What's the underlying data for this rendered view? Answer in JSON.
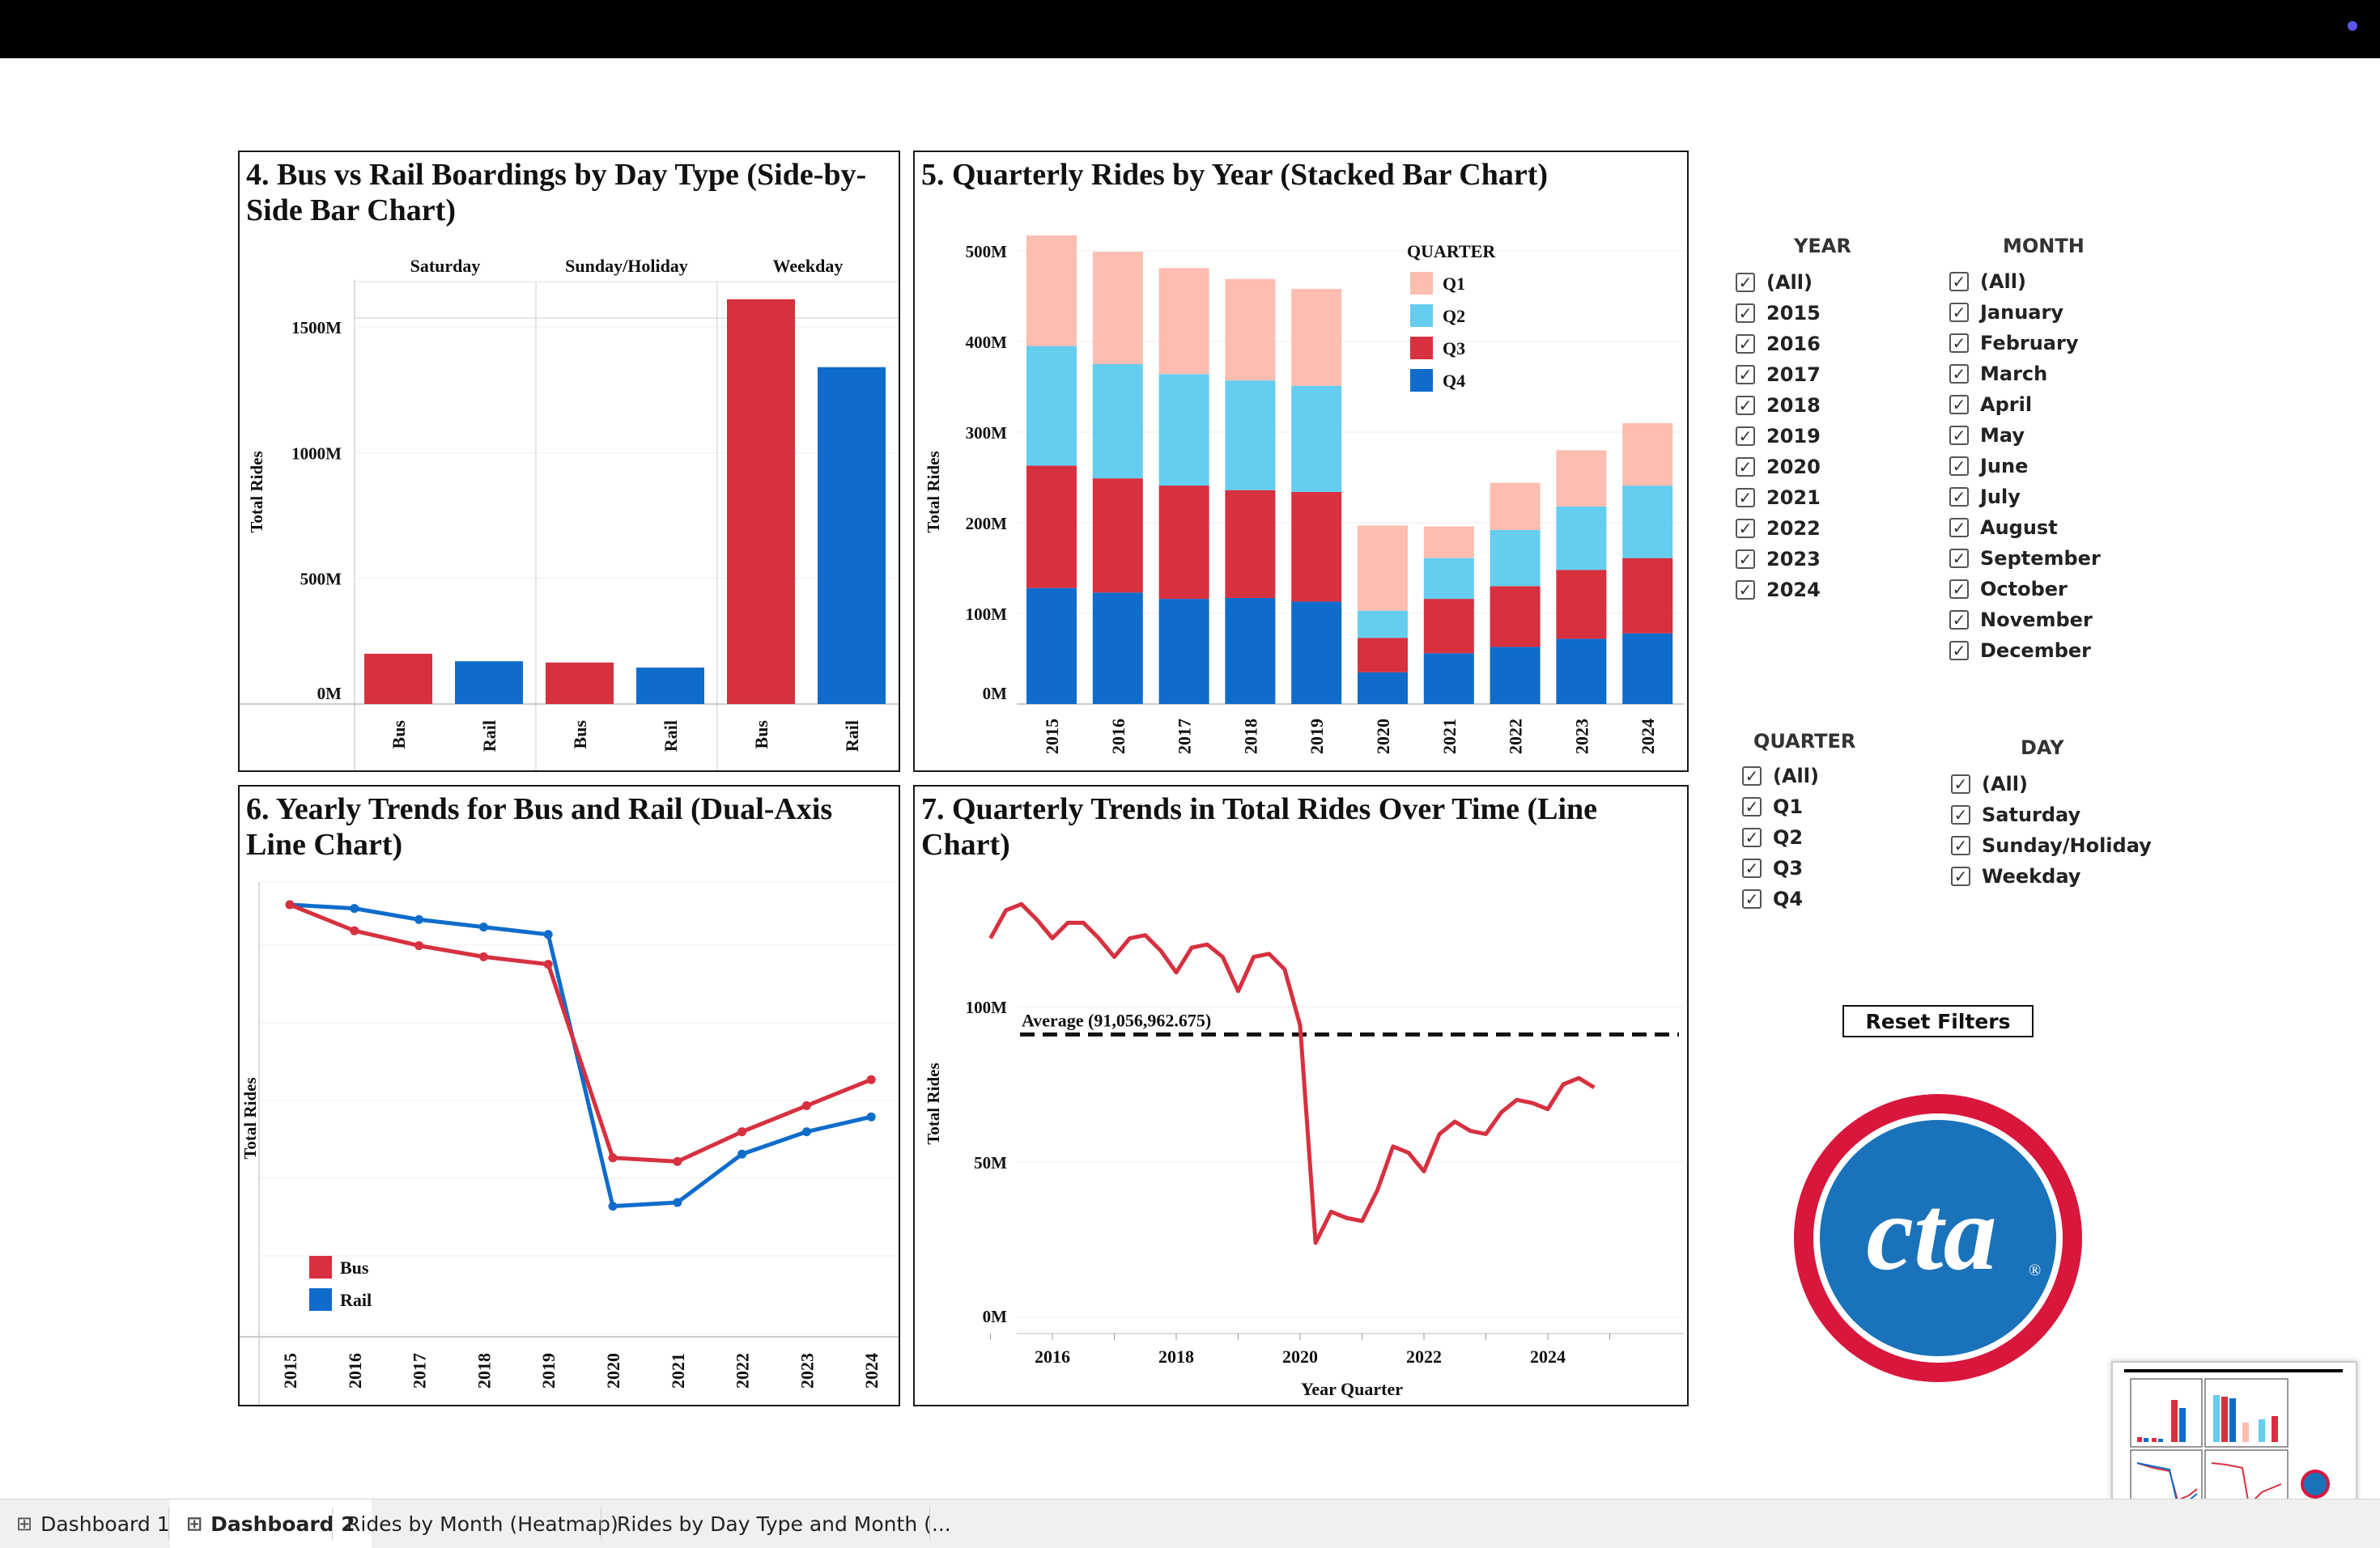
{
  "panels": {
    "p4": {
      "title": "4. Bus vs Rail Boardings by Day Type (Side-by-Side Bar Chart)"
    },
    "p5": {
      "title": "5. Quarterly Rides by Year (Stacked Bar Chart)"
    },
    "p6": {
      "title": "6. Yearly Trends for Bus and Rail (Dual-Axis Line Chart)"
    },
    "p7": {
      "title": "7. Quarterly Trends in Total Rides Over Time (Line Chart)"
    }
  },
  "colors": {
    "bus": "#d7303f",
    "rail": "#0f6ccb",
    "q1": "#fdbdb1",
    "q2": "#65cdef",
    "q3": "#d7303f",
    "q4": "#0f6ccb"
  },
  "chart_data": [
    {
      "id": "p4",
      "type": "bar",
      "title": "4. Bus vs Rail Boardings by Day Type (Side-by-Side Bar Chart)",
      "ylabel": "Total Rides",
      "ylim": [
        0,
        1700
      ],
      "yticks": [
        "0M",
        "500M",
        "1000M",
        "1500M"
      ],
      "ytick_values": [
        0,
        500,
        1000,
        1500
      ],
      "groups": [
        "Saturday",
        "Sunday/Holiday",
        "Weekday"
      ],
      "categories": [
        "Bus",
        "Rail"
      ],
      "values": {
        "Saturday": [
          200,
          170
        ],
        "Sunday/Holiday": [
          165,
          145
        ],
        "Weekday": [
          1610,
          1340
        ]
      },
      "grid": true
    },
    {
      "id": "p5",
      "type": "bar",
      "stacked": true,
      "title": "5. Quarterly Rides by Year (Stacked Bar Chart)",
      "ylabel": "Total Rides",
      "ylim": [
        0,
        520
      ],
      "yticks": [
        "0M",
        "100M",
        "200M",
        "300M",
        "400M",
        "500M"
      ],
      "ytick_values": [
        0,
        100,
        200,
        300,
        400,
        500
      ],
      "categories": [
        "2015",
        "2016",
        "2017",
        "2018",
        "2019",
        "2020",
        "2021",
        "2022",
        "2023",
        "2024"
      ],
      "legend_title": "QUARTER",
      "legend_position": "top-right",
      "series": [
        {
          "name": "Q4",
          "values": [
            128,
            123,
            116,
            117,
            113,
            35,
            56,
            63,
            72,
            78
          ]
        },
        {
          "name": "Q3",
          "values": [
            135,
            126,
            125,
            119,
            121,
            38,
            60,
            67,
            76,
            83
          ]
        },
        {
          "name": "Q2",
          "values": [
            132,
            126,
            123,
            121,
            117,
            30,
            45,
            62,
            70,
            80
          ]
        },
        {
          "name": "Q1",
          "values": [
            122,
            124,
            117,
            112,
            107,
            94,
            35,
            52,
            62,
            69
          ]
        }
      ],
      "legend_entries": [
        "Q1",
        "Q2",
        "Q3",
        "Q4"
      ]
    },
    {
      "id": "p6",
      "type": "line",
      "title": "6. Yearly Trends for Bus and Rail (Dual-Axis Line Chart)",
      "ylabel": "Total Rides",
      "x": [
        "2015",
        "2016",
        "2017",
        "2018",
        "2019",
        "2020",
        "2021",
        "2022",
        "2023",
        "2024"
      ],
      "legend_position": "bottom-left",
      "series": [
        {
          "name": "Bus",
          "values": [
            100,
            93,
            89,
            86,
            84,
            32,
            31,
            39,
            46,
            53
          ]
        },
        {
          "name": "Rail",
          "values": [
            100,
            99,
            96,
            94,
            92,
            19,
            20,
            33,
            39,
            43
          ]
        }
      ],
      "ylim": [
        0,
        110
      ],
      "grid": true
    },
    {
      "id": "p7",
      "type": "line",
      "title": "7. Quarterly Trends in Total Rides Over Time (Line Chart)",
      "ylabel": "Total Rides",
      "xlabel": "Year Quarter",
      "xticks": [
        "2016",
        "2018",
        "2020",
        "2022",
        "2024"
      ],
      "xtick_values": [
        2016,
        2018,
        2020,
        2022,
        2024
      ],
      "yticks": [
        "0M",
        "50M",
        "100M"
      ],
      "ytick_values": [
        0,
        50,
        100
      ],
      "xlim": [
        2014.9,
        2025.0
      ],
      "ylim": [
        0,
        140
      ],
      "reference_line": {
        "label": "Average (91,056,962.675)",
        "value": 91.06
      },
      "series": [
        {
          "name": "Total Rides",
          "x": [
            2015.0,
            2015.25,
            2015.5,
            2015.75,
            2016.0,
            2016.25,
            2016.5,
            2016.75,
            2017.0,
            2017.25,
            2017.5,
            2017.75,
            2018.0,
            2018.25,
            2018.5,
            2018.75,
            2019.0,
            2019.25,
            2019.5,
            2019.75,
            2020.0,
            2020.25,
            2020.5,
            2020.75,
            2021.0,
            2021.25,
            2021.5,
            2021.75,
            2022.0,
            2022.25,
            2022.5,
            2022.75,
            2023.0,
            2023.25,
            2023.5,
            2023.75,
            2024.0,
            2024.25,
            2024.5,
            2024.75
          ],
          "y": [
            122,
            131,
            133,
            128,
            122,
            127,
            127,
            122,
            116,
            122,
            123,
            118,
            111,
            119,
            120,
            116,
            105,
            116,
            117,
            112,
            94,
            24,
            34,
            32,
            31,
            41,
            55,
            53,
            47,
            59,
            63,
            60,
            59,
            66,
            70,
            69,
            67,
            75,
            77,
            74
          ]
        }
      ]
    }
  ],
  "filters": {
    "year": {
      "title": "YEAR",
      "items": [
        "(All)",
        "2015",
        "2016",
        "2017",
        "2018",
        "2019",
        "2020",
        "2021",
        "2022",
        "2023",
        "2024"
      ]
    },
    "month": {
      "title": "MONTH",
      "items": [
        "(All)",
        "January",
        "February",
        "March",
        "April",
        "May",
        "June",
        "July",
        "August",
        "September",
        "October",
        "November",
        "December"
      ]
    },
    "quarter": {
      "title": "QUARTER",
      "items": [
        "(All)",
        "Q1",
        "Q2",
        "Q3",
        "Q4"
      ]
    },
    "day": {
      "title": "DAY",
      "items": [
        "(All)",
        "Saturday",
        "Sunday/Holiday",
        "Weekday"
      ]
    },
    "checkmark": "✓"
  },
  "reset_label": "Reset Filters",
  "logo": {
    "text": "cta",
    "mark": "®",
    "ring_color": "#d9163c",
    "fill_color": "#1a73ba"
  },
  "tabs": [
    {
      "label": "Dashboard 1",
      "icon": "grid-icon"
    },
    {
      "label": "Dashboard 2",
      "icon": "grid-icon"
    },
    {
      "label": "Rides by Month (Heatmap)"
    },
    {
      "label": "Rides by Day Type and Month (..."
    }
  ]
}
